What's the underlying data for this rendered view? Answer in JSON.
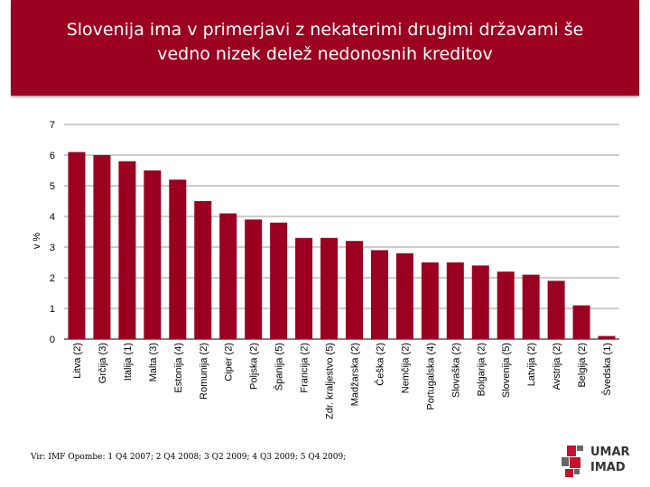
{
  "title_line1": "Slovenija ima v primerjavi z nekaterimi drugimi državami še",
  "title_line2": "vedno nizek delež nedonosnih kreditov",
  "footer": {
    "source": "Vir: IMF Opombe: 1 Q4 2007; 2 Q4 2008; 3 Q2 2009; 4 Q3 2009; 5 Q4 2009;"
  },
  "logo": {
    "line1": "UMAR",
    "line2": "IMAD"
  },
  "colors": {
    "title_bar": "#9b0021",
    "bar": "#9b0021",
    "logo_red": "#c8102e",
    "logo_grey": "#666666"
  },
  "chart_data": {
    "type": "bar",
    "ylabel": "v %",
    "ylim": [
      0,
      7
    ],
    "yticks": [
      0,
      1,
      2,
      3,
      4,
      5,
      6,
      7
    ],
    "grid": true,
    "categories": [
      "Litva (2)",
      "Grčija (3)",
      "Italija (1)",
      "Malta (3)",
      "Estonija (4)",
      "Romunija (2)",
      "Ciper (2)",
      "Poljska (2)",
      "Španija (5)",
      "Francija (2)",
      "Zdr. kraljestvo (5)",
      "Madžarska (2)",
      "Češka (2)",
      "Nemčija (2)",
      "Portugalska (4)",
      "Slovaška (2)",
      "Bolgarija (2)",
      "Slovenija (5)",
      "Latvija (2)",
      "Avstrija (2)",
      "Belgija (2)",
      "Švedska (1)"
    ],
    "values": [
      6.1,
      6.0,
      5.8,
      5.5,
      5.2,
      4.5,
      4.1,
      3.9,
      3.8,
      3.3,
      3.3,
      3.2,
      2.9,
      2.8,
      2.5,
      2.5,
      2.4,
      2.2,
      2.1,
      1.9,
      1.1,
      0.1
    ]
  }
}
